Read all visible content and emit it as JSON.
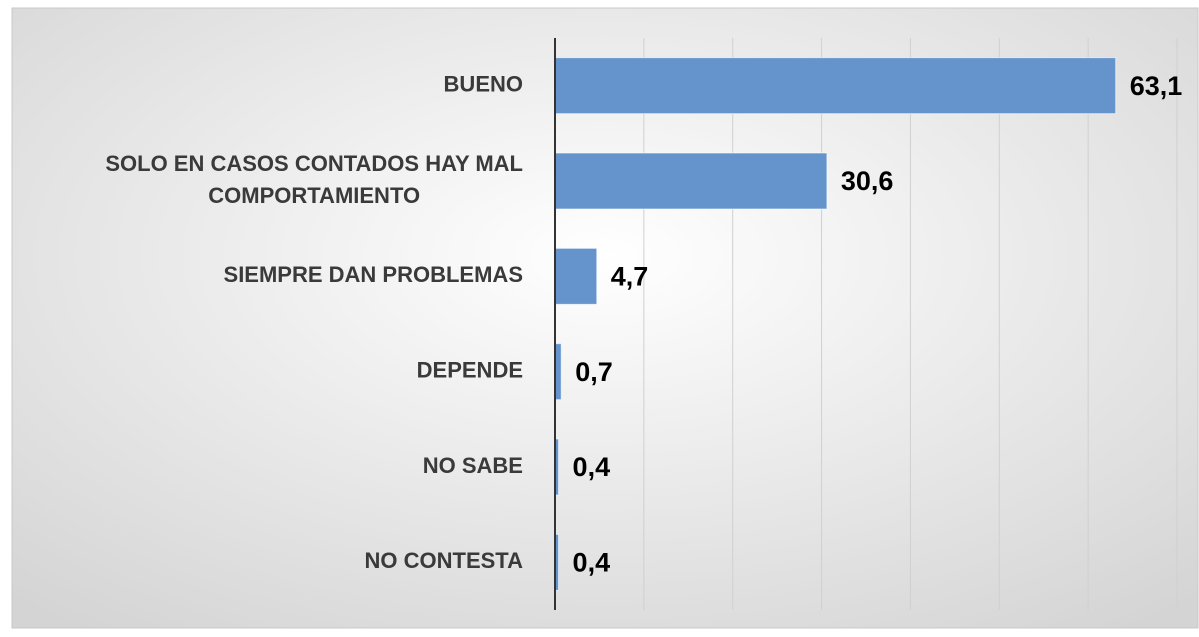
{
  "chart_data": {
    "type": "barh",
    "categories": [
      "BUENO",
      "SOLO EN CASOS CONTADOS HAY MAL COMPORTAMIENTO",
      "SIEMPRE DAN PROBLEMAS",
      "DEPENDE",
      "NO SABE",
      "NO CONTESTA"
    ],
    "values": [
      63.1,
      30.6,
      4.7,
      0.7,
      0.4,
      0.4
    ],
    "value_labels": [
      "63,1",
      "30,6",
      "4,7",
      "0,7",
      "0,4",
      "0,4"
    ],
    "color": "#6494cb",
    "xlim": [
      0,
      70
    ],
    "xticks": [
      0,
      10,
      20,
      30,
      40,
      50,
      60,
      70
    ],
    "grid": true
  }
}
